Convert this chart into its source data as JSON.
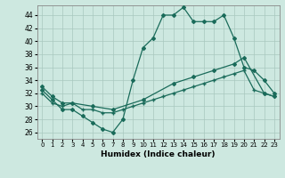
{
  "xlabel": "Humidex (Indice chaleur)",
  "background_color": "#cde8e0",
  "line_color": "#1a6b5a",
  "xlim": [
    -0.5,
    23.5
  ],
  "ylim": [
    25,
    45.5
  ],
  "yticks": [
    26,
    28,
    30,
    32,
    34,
    36,
    38,
    40,
    42,
    44
  ],
  "xticks": [
    0,
    1,
    2,
    3,
    4,
    5,
    6,
    7,
    8,
    9,
    10,
    11,
    12,
    13,
    14,
    15,
    16,
    17,
    18,
    19,
    20,
    21,
    22,
    23
  ],
  "line1_x": [
    0,
    1,
    2,
    3,
    4,
    5,
    6,
    7,
    8,
    9,
    10,
    11,
    12,
    13,
    14,
    15,
    16,
    17,
    18,
    19,
    20,
    21,
    22,
    23
  ],
  "line1_y": [
    32.5,
    31.0,
    29.5,
    29.5,
    28.5,
    27.5,
    26.5,
    26.0,
    28.0,
    34.0,
    39.0,
    40.5,
    44.0,
    44.0,
    45.2,
    43.0,
    43.0,
    43.0,
    44.0,
    40.5,
    36.0,
    35.5,
    34.0,
    32.0
  ],
  "line2_x": [
    0,
    1,
    2,
    3,
    5,
    7,
    10,
    13,
    15,
    17,
    19,
    20,
    22,
    23
  ],
  "line2_y": [
    33.0,
    31.5,
    30.5,
    30.5,
    30.0,
    29.5,
    31.0,
    33.5,
    34.5,
    35.5,
    36.5,
    37.5,
    32.0,
    31.5
  ],
  "line3_x": [
    0,
    1,
    2,
    3,
    4,
    5,
    6,
    7,
    8,
    9,
    10,
    11,
    12,
    13,
    14,
    15,
    16,
    17,
    18,
    19,
    20,
    21,
    22,
    23
  ],
  "line3_y": [
    32.0,
    30.5,
    30.0,
    30.5,
    29.5,
    29.5,
    29.0,
    29.0,
    29.5,
    30.0,
    30.5,
    31.0,
    31.5,
    32.0,
    32.5,
    33.0,
    33.5,
    34.0,
    34.5,
    35.0,
    35.5,
    32.5,
    32.0,
    31.5
  ]
}
